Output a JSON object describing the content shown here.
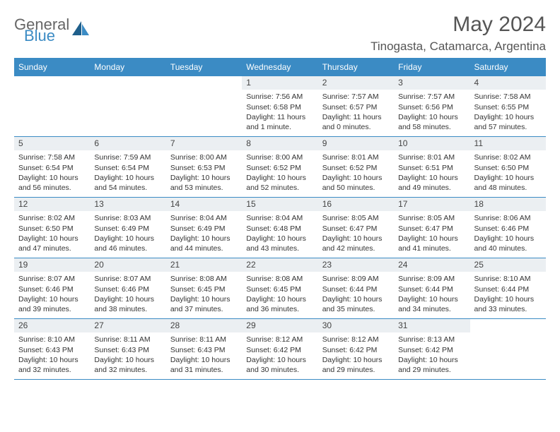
{
  "brand": {
    "general": "General",
    "blue": "Blue"
  },
  "title": "May 2024",
  "location": "Tinogasta, Catamarca, Argentina",
  "colors": {
    "header_bg": "#3b8bc4",
    "header_text": "#ffffff",
    "daynum_bg": "#ebeff2",
    "text": "#333333",
    "border": "#3b8bc4",
    "logo_blue": "#3b8bc4",
    "logo_gray": "#666666"
  },
  "typography": {
    "title_fontsize": 30,
    "location_fontsize": 17,
    "weekday_fontsize": 12,
    "daynum_fontsize": 12,
    "body_fontsize": 10.5
  },
  "weekdays": [
    "Sunday",
    "Monday",
    "Tuesday",
    "Wednesday",
    "Thursday",
    "Friday",
    "Saturday"
  ],
  "layout": {
    "columns": 7,
    "rows": 5,
    "first_weekday_index": 3
  },
  "weeks": [
    [
      null,
      null,
      null,
      {
        "n": "1",
        "sr": "Sunrise: 7:56 AM",
        "ss": "Sunset: 6:58 PM",
        "d1": "Daylight: 11 hours",
        "d2": "and 1 minute."
      },
      {
        "n": "2",
        "sr": "Sunrise: 7:57 AM",
        "ss": "Sunset: 6:57 PM",
        "d1": "Daylight: 11 hours",
        "d2": "and 0 minutes."
      },
      {
        "n": "3",
        "sr": "Sunrise: 7:57 AM",
        "ss": "Sunset: 6:56 PM",
        "d1": "Daylight: 10 hours",
        "d2": "and 58 minutes."
      },
      {
        "n": "4",
        "sr": "Sunrise: 7:58 AM",
        "ss": "Sunset: 6:55 PM",
        "d1": "Daylight: 10 hours",
        "d2": "and 57 minutes."
      }
    ],
    [
      {
        "n": "5",
        "sr": "Sunrise: 7:58 AM",
        "ss": "Sunset: 6:54 PM",
        "d1": "Daylight: 10 hours",
        "d2": "and 56 minutes."
      },
      {
        "n": "6",
        "sr": "Sunrise: 7:59 AM",
        "ss": "Sunset: 6:54 PM",
        "d1": "Daylight: 10 hours",
        "d2": "and 54 minutes."
      },
      {
        "n": "7",
        "sr": "Sunrise: 8:00 AM",
        "ss": "Sunset: 6:53 PM",
        "d1": "Daylight: 10 hours",
        "d2": "and 53 minutes."
      },
      {
        "n": "8",
        "sr": "Sunrise: 8:00 AM",
        "ss": "Sunset: 6:52 PM",
        "d1": "Daylight: 10 hours",
        "d2": "and 52 minutes."
      },
      {
        "n": "9",
        "sr": "Sunrise: 8:01 AM",
        "ss": "Sunset: 6:52 PM",
        "d1": "Daylight: 10 hours",
        "d2": "and 50 minutes."
      },
      {
        "n": "10",
        "sr": "Sunrise: 8:01 AM",
        "ss": "Sunset: 6:51 PM",
        "d1": "Daylight: 10 hours",
        "d2": "and 49 minutes."
      },
      {
        "n": "11",
        "sr": "Sunrise: 8:02 AM",
        "ss": "Sunset: 6:50 PM",
        "d1": "Daylight: 10 hours",
        "d2": "and 48 minutes."
      }
    ],
    [
      {
        "n": "12",
        "sr": "Sunrise: 8:02 AM",
        "ss": "Sunset: 6:50 PM",
        "d1": "Daylight: 10 hours",
        "d2": "and 47 minutes."
      },
      {
        "n": "13",
        "sr": "Sunrise: 8:03 AM",
        "ss": "Sunset: 6:49 PM",
        "d1": "Daylight: 10 hours",
        "d2": "and 46 minutes."
      },
      {
        "n": "14",
        "sr": "Sunrise: 8:04 AM",
        "ss": "Sunset: 6:49 PM",
        "d1": "Daylight: 10 hours",
        "d2": "and 44 minutes."
      },
      {
        "n": "15",
        "sr": "Sunrise: 8:04 AM",
        "ss": "Sunset: 6:48 PM",
        "d1": "Daylight: 10 hours",
        "d2": "and 43 minutes."
      },
      {
        "n": "16",
        "sr": "Sunrise: 8:05 AM",
        "ss": "Sunset: 6:47 PM",
        "d1": "Daylight: 10 hours",
        "d2": "and 42 minutes."
      },
      {
        "n": "17",
        "sr": "Sunrise: 8:05 AM",
        "ss": "Sunset: 6:47 PM",
        "d1": "Daylight: 10 hours",
        "d2": "and 41 minutes."
      },
      {
        "n": "18",
        "sr": "Sunrise: 8:06 AM",
        "ss": "Sunset: 6:46 PM",
        "d1": "Daylight: 10 hours",
        "d2": "and 40 minutes."
      }
    ],
    [
      {
        "n": "19",
        "sr": "Sunrise: 8:07 AM",
        "ss": "Sunset: 6:46 PM",
        "d1": "Daylight: 10 hours",
        "d2": "and 39 minutes."
      },
      {
        "n": "20",
        "sr": "Sunrise: 8:07 AM",
        "ss": "Sunset: 6:46 PM",
        "d1": "Daylight: 10 hours",
        "d2": "and 38 minutes."
      },
      {
        "n": "21",
        "sr": "Sunrise: 8:08 AM",
        "ss": "Sunset: 6:45 PM",
        "d1": "Daylight: 10 hours",
        "d2": "and 37 minutes."
      },
      {
        "n": "22",
        "sr": "Sunrise: 8:08 AM",
        "ss": "Sunset: 6:45 PM",
        "d1": "Daylight: 10 hours",
        "d2": "and 36 minutes."
      },
      {
        "n": "23",
        "sr": "Sunrise: 8:09 AM",
        "ss": "Sunset: 6:44 PM",
        "d1": "Daylight: 10 hours",
        "d2": "and 35 minutes."
      },
      {
        "n": "24",
        "sr": "Sunrise: 8:09 AM",
        "ss": "Sunset: 6:44 PM",
        "d1": "Daylight: 10 hours",
        "d2": "and 34 minutes."
      },
      {
        "n": "25",
        "sr": "Sunrise: 8:10 AM",
        "ss": "Sunset: 6:44 PM",
        "d1": "Daylight: 10 hours",
        "d2": "and 33 minutes."
      }
    ],
    [
      {
        "n": "26",
        "sr": "Sunrise: 8:10 AM",
        "ss": "Sunset: 6:43 PM",
        "d1": "Daylight: 10 hours",
        "d2": "and 32 minutes."
      },
      {
        "n": "27",
        "sr": "Sunrise: 8:11 AM",
        "ss": "Sunset: 6:43 PM",
        "d1": "Daylight: 10 hours",
        "d2": "and 32 minutes."
      },
      {
        "n": "28",
        "sr": "Sunrise: 8:11 AM",
        "ss": "Sunset: 6:43 PM",
        "d1": "Daylight: 10 hours",
        "d2": "and 31 minutes."
      },
      {
        "n": "29",
        "sr": "Sunrise: 8:12 AM",
        "ss": "Sunset: 6:42 PM",
        "d1": "Daylight: 10 hours",
        "d2": "and 30 minutes."
      },
      {
        "n": "30",
        "sr": "Sunrise: 8:12 AM",
        "ss": "Sunset: 6:42 PM",
        "d1": "Daylight: 10 hours",
        "d2": "and 29 minutes."
      },
      {
        "n": "31",
        "sr": "Sunrise: 8:13 AM",
        "ss": "Sunset: 6:42 PM",
        "d1": "Daylight: 10 hours",
        "d2": "and 29 minutes."
      },
      null
    ]
  ]
}
